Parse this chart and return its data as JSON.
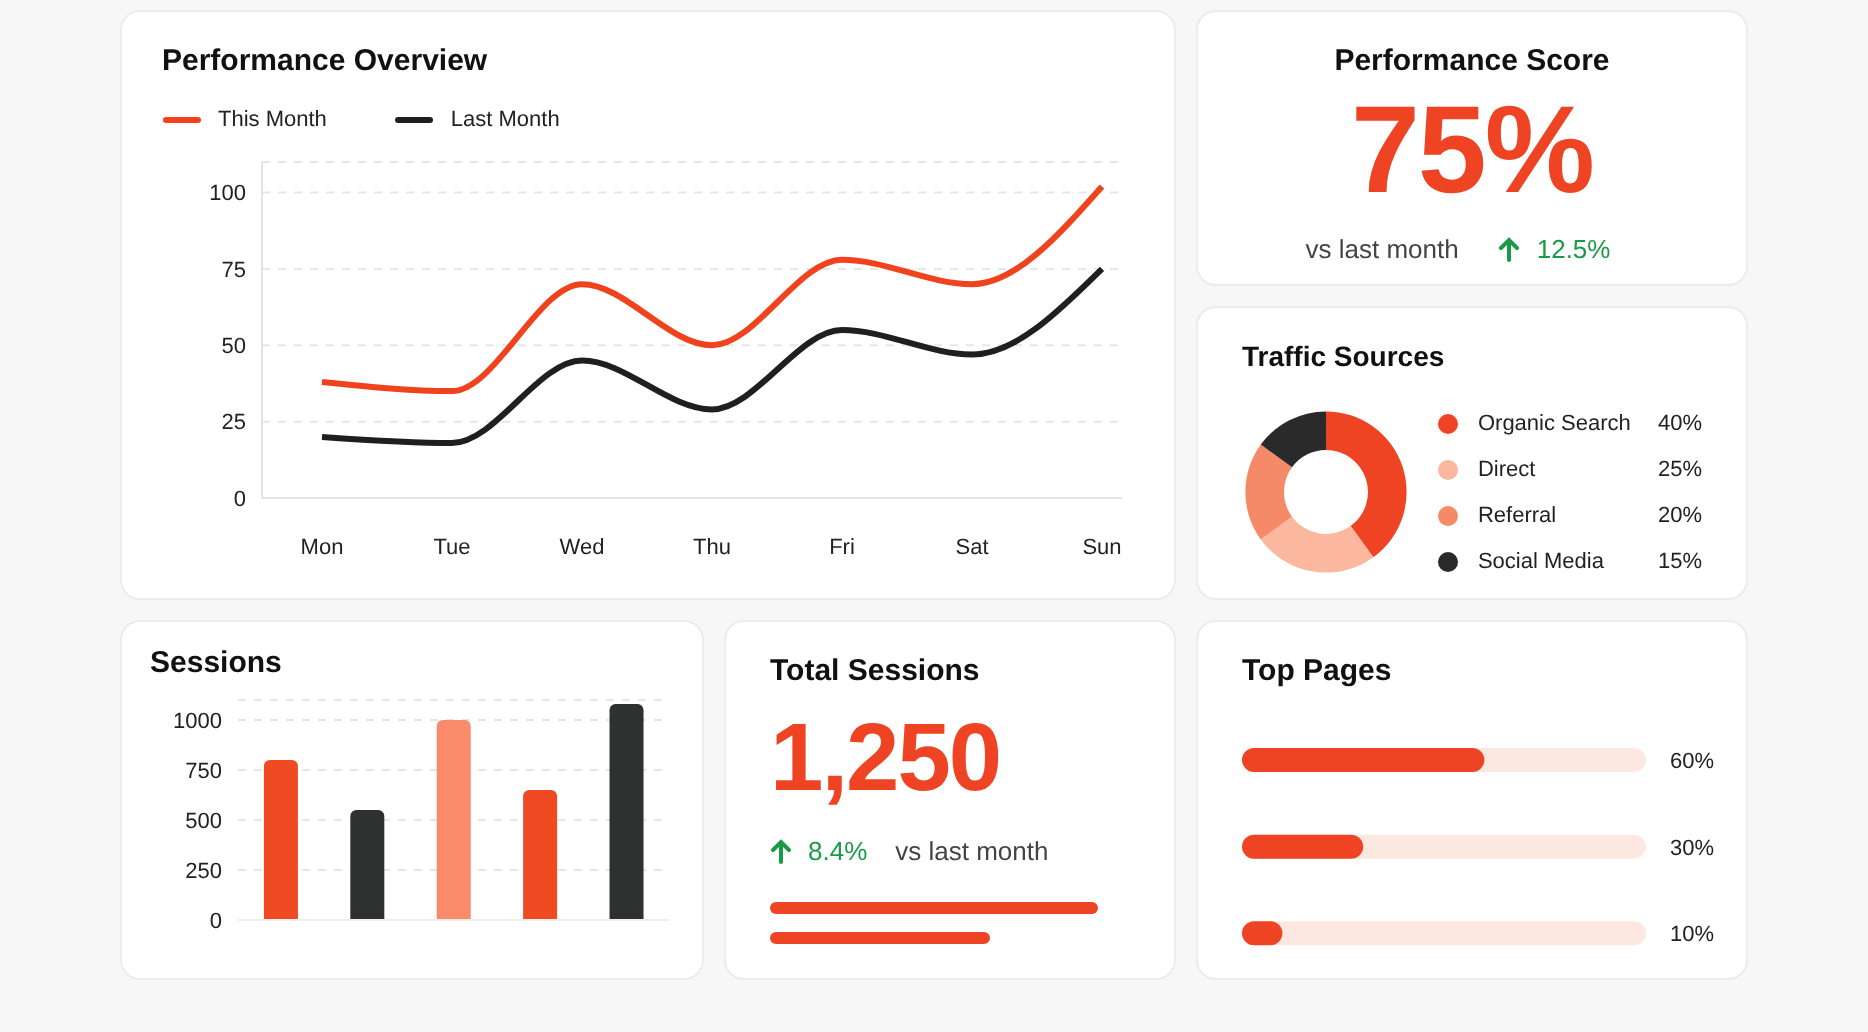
{
  "chart_data": [
    {
      "type": "line",
      "title": "Performance Overview",
      "categories": [
        "Mon",
        "Tue",
        "Wed",
        "Thu",
        "Fri",
        "Sat",
        "Sun"
      ],
      "series": [
        {
          "name": "This Month",
          "color": "#f0421d",
          "values": [
            38,
            35,
            70,
            50,
            78,
            70,
            102
          ]
        },
        {
          "name": "Last Month",
          "color": "#1f1f1f",
          "values": [
            20,
            18,
            45,
            29,
            55,
            47,
            75
          ]
        }
      ],
      "ylim": [
        0,
        110
      ],
      "yticks": [
        0,
        25,
        50,
        75,
        100
      ],
      "grid": "y",
      "legend": "top left"
    },
    {
      "type": "other",
      "title": "Performance Score",
      "annotations": [
        "75%",
        "vs last month",
        "12.5%"
      ]
    },
    {
      "type": "donut",
      "title": "Traffic Sources",
      "categories": [
        "Organic Search",
        "Direct",
        "Referral",
        "Social Media"
      ],
      "values": [
        40,
        25,
        20,
        15
      ],
      "colors": [
        "#ee4423",
        "#fbb89e",
        "#f58a68",
        "#2a2a2a"
      ],
      "value_labels": [
        "40%",
        "25%",
        "20%",
        "15%"
      ],
      "legend": "right"
    },
    {
      "type": "bar",
      "title": "Sessions",
      "categories": [
        null,
        null,
        null,
        null,
        null
      ],
      "values": [
        800,
        550,
        1000,
        650,
        1080
      ],
      "colors": [
        "#f04a23",
        "#2e3130",
        "#f98a6a",
        "#f04a23",
        "#2e3130"
      ],
      "ylim": [
        0,
        1100
      ],
      "yticks": [
        0,
        250,
        500,
        750,
        1000
      ],
      "grid": "y",
      "tick_labels": "y"
    },
    {
      "type": "other",
      "title": "Total Sessions",
      "annotations": [
        "1,250",
        "8.4%",
        "vs last month"
      ]
    },
    {
      "type": "bar",
      "title": "Top Pages",
      "orientation": "horizontal",
      "categories": [
        null,
        null,
        null
      ],
      "values": [
        60,
        30,
        10
      ],
      "color": "#ef4423",
      "value_labels": [
        "60%",
        "30%",
        "10%"
      ],
      "xlim": [
        0,
        100
      ],
      "tick_labels": false
    }
  ]
}
